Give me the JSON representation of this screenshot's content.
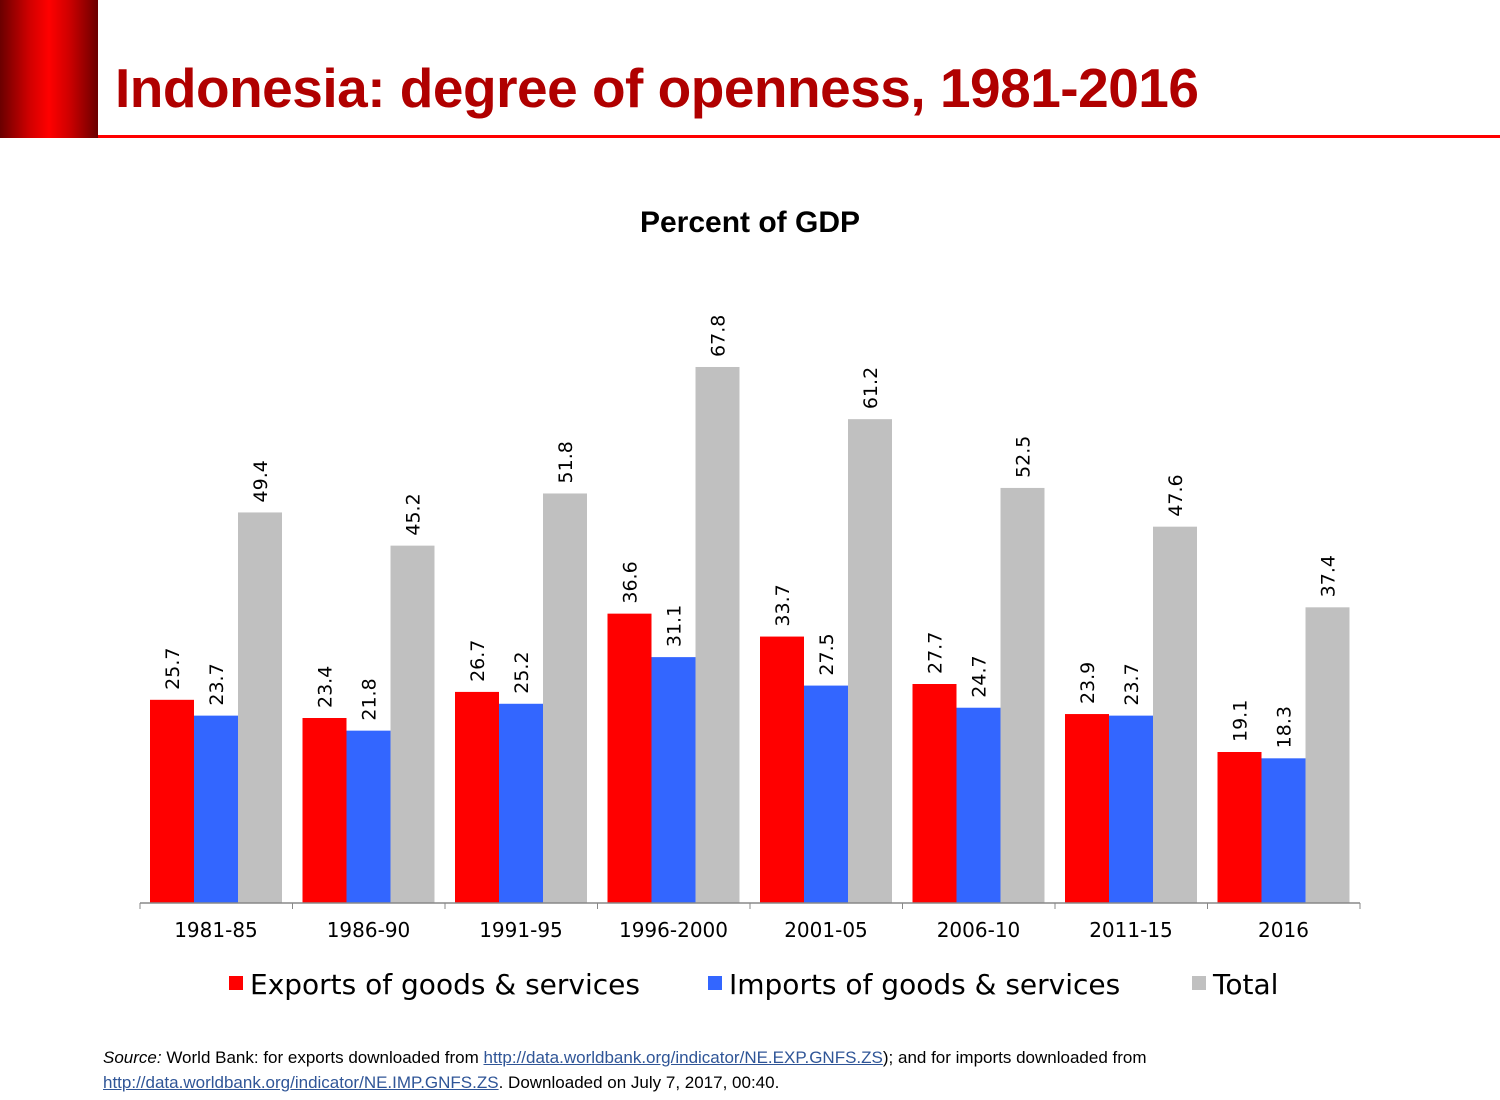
{
  "header": {
    "title": "Indonesia: degree of openness, 1981-2016"
  },
  "chart_data": {
    "type": "bar",
    "title": "Percent of GDP",
    "categories": [
      "1981-85",
      "1986-90",
      "1991-95",
      "1996-2000",
      "2001-05",
      "2006-10",
      "2011-15",
      "2016"
    ],
    "series": [
      {
        "name": "Exports of goods & services",
        "color": "#ff0000",
        "values": [
          25.7,
          23.4,
          26.7,
          36.6,
          33.7,
          27.7,
          23.9,
          19.1
        ]
      },
      {
        "name": "Imports of goods & services",
        "color": "#3366ff",
        "values": [
          23.7,
          21.8,
          25.2,
          31.1,
          27.5,
          24.7,
          23.7,
          18.3
        ]
      },
      {
        "name": "Total",
        "color": "#c0c0c0",
        "values": [
          49.4,
          45.2,
          51.8,
          67.8,
          61.2,
          52.5,
          47.6,
          37.4
        ]
      }
    ],
    "ylim": [
      0,
      70
    ],
    "grid": false,
    "legend": "bottom",
    "data_labels": true
  },
  "source": {
    "label": "Source:",
    "text1": " World Bank: for exports downloaded from ",
    "link1": "http://data.worldbank.org/indicator/NE.EXP.GNFS.ZS",
    "text2": "); and for imports downloaded from ",
    "link2": "http://data.worldbank.org/indicator/NE.IMP.GNFS.ZS",
    "text3": ". Downloaded on July 7, 2017, 00:40."
  }
}
